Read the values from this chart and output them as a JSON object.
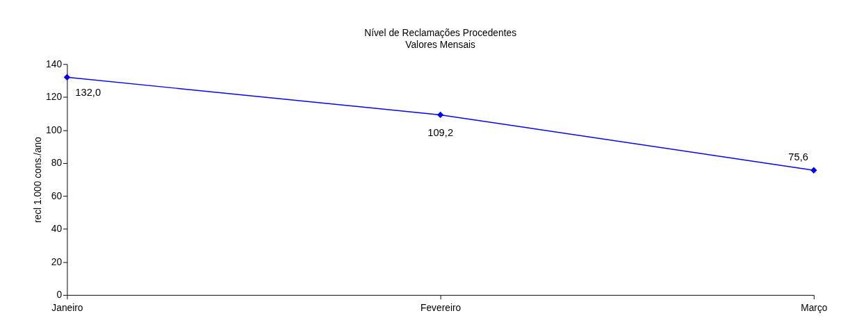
{
  "chart_data": {
    "type": "line",
    "title": "Nível de Reclamações Procedentes",
    "subtitle": "Valores Mensais",
    "ylabel": "recl 1.000 cons./ano",
    "categories": [
      "Janeiro",
      "Fevereiro",
      "Março"
    ],
    "series": [
      {
        "color": "#0000ff",
        "values": [
          132.0,
          109.2,
          75.6
        ],
        "value_labels": [
          "132,0",
          "109,2",
          "75,6"
        ]
      }
    ],
    "ylim": [
      0,
      140
    ],
    "yticks": [
      0,
      20,
      40,
      60,
      80,
      100,
      120,
      140
    ],
    "grid": false,
    "marker": "diamond",
    "line_style": "solid"
  }
}
